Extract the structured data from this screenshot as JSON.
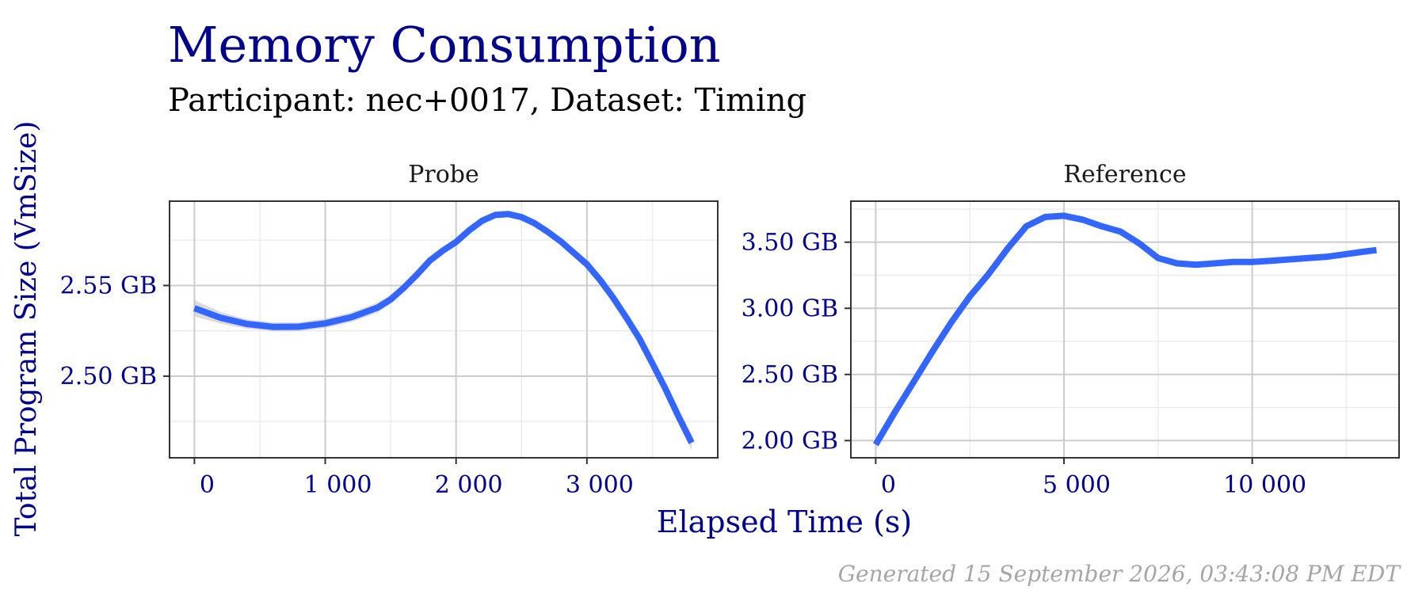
{
  "title": "Memory Consumption",
  "subtitle": "Participant: nec+0017, Dataset: Timing",
  "ylabel": "Total Program Size (VmSize)",
  "xlabel": "Elapsed Time (s)",
  "caption": "Generated 15 September 2026, 03:43:08 PM EDT",
  "colors": {
    "title": "#00008b",
    "axis_text": "#00008b",
    "line": "#3366ff",
    "ribbon": "#bdbdbd",
    "grid_major": "#cccccc",
    "grid_minor": "#ebebeb",
    "panel_border": "#333333",
    "caption": "#a6a6a6"
  },
  "chart_data": [
    {
      "type": "line",
      "panel": "Probe",
      "x_ticks": [
        0,
        1000,
        2000,
        3000
      ],
      "x_tick_labels": [
        "0",
        "1 000",
        "2 000",
        "3 000"
      ],
      "y_ticks": [
        2.5,
        2.55
      ],
      "y_tick_labels": [
        "2.50 GB",
        "2.55 GB"
      ],
      "xlim": [
        -190,
        4000
      ],
      "ylim": [
        2.455,
        2.5965
      ],
      "grid": true,
      "series": [
        {
          "x": [
            0,
            200,
            400,
            600,
            800,
            1000,
            1200,
            1400,
            1500,
            1600,
            1700,
            1800,
            1900,
            2000,
            2100,
            2200,
            2300,
            2400,
            2500,
            2600,
            2700,
            2800,
            2900,
            3000,
            3100,
            3200,
            3300,
            3400,
            3500,
            3600,
            3700,
            3800
          ],
          "y": [
            2.5375,
            2.5322,
            2.5288,
            2.5272,
            2.5273,
            2.5291,
            2.5325,
            2.5378,
            2.5423,
            2.5487,
            2.5559,
            2.5638,
            2.5693,
            2.574,
            2.5804,
            2.5857,
            2.5889,
            2.5894,
            2.5877,
            2.5843,
            2.5796,
            2.5743,
            2.568,
            2.5617,
            2.5531,
            2.5433,
            2.5324,
            2.5209,
            2.5071,
            2.4931,
            2.4778,
            2.4633
          ],
          "lower": [
            2.533,
            2.529,
            2.5262,
            2.5248,
            2.5248,
            2.5265,
            2.5298,
            2.535,
            2.5398,
            2.5465,
            2.5538,
            2.562,
            2.5675,
            2.5722,
            2.5787,
            2.5842,
            2.5875,
            2.588,
            2.5863,
            2.5829,
            2.5782,
            2.5729,
            2.5666,
            2.5602,
            2.5515,
            2.5416,
            2.5305,
            2.5188,
            2.5048,
            2.4905,
            2.4748,
            2.459
          ],
          "upper": [
            2.542,
            2.5354,
            2.5314,
            2.5296,
            2.5298,
            2.5317,
            2.5352,
            2.5406,
            2.5448,
            2.5509,
            2.558,
            2.5656,
            2.5711,
            2.5758,
            2.5821,
            2.5872,
            2.5903,
            2.5908,
            2.5891,
            2.5857,
            2.581,
            2.5757,
            2.5694,
            2.5632,
            2.5547,
            2.545,
            2.5343,
            2.523,
            2.5094,
            2.4957,
            2.4808,
            2.4676
          ]
        }
      ]
    },
    {
      "type": "line",
      "panel": "Reference",
      "x_ticks": [
        0,
        5000,
        10000
      ],
      "x_tick_labels": [
        "0",
        "5 000",
        "10 000"
      ],
      "y_ticks": [
        2.0,
        2.5,
        3.0,
        3.5
      ],
      "y_tick_labels": [
        "2.00 GB",
        "2.50 GB",
        "3.00 GB",
        "3.50 GB"
      ],
      "xlim": [
        -660,
        13900
      ],
      "ylim": [
        1.87,
        3.81
      ],
      "grid": true,
      "series": [
        {
          "x": [
            0,
            500,
            1000,
            1500,
            2000,
            2500,
            3000,
            3500,
            4000,
            4500,
            5000,
            5500,
            6000,
            6500,
            7000,
            7500,
            8000,
            8500,
            9000,
            9500,
            10000,
            10500,
            11000,
            11500,
            12000,
            12500,
            13000,
            13300
          ],
          "y": [
            1.97,
            2.21,
            2.44,
            2.67,
            2.89,
            3.09,
            3.26,
            3.45,
            3.62,
            3.69,
            3.7,
            3.67,
            3.62,
            3.58,
            3.49,
            3.38,
            3.34,
            3.33,
            3.34,
            3.35,
            3.35,
            3.36,
            3.37,
            3.38,
            3.39,
            3.41,
            3.43,
            3.44
          ],
          "lower": [
            1.95,
            2.2,
            2.43,
            2.66,
            2.88,
            3.08,
            3.25,
            3.44,
            3.61,
            3.68,
            3.69,
            3.66,
            3.61,
            3.57,
            3.48,
            3.37,
            3.33,
            3.32,
            3.33,
            3.34,
            3.34,
            3.35,
            3.36,
            3.37,
            3.38,
            3.4,
            3.42,
            3.43
          ],
          "upper": [
            1.99,
            2.22,
            2.45,
            2.68,
            2.9,
            3.1,
            3.27,
            3.46,
            3.63,
            3.7,
            3.71,
            3.68,
            3.63,
            3.59,
            3.5,
            3.39,
            3.35,
            3.34,
            3.35,
            3.36,
            3.36,
            3.37,
            3.38,
            3.39,
            3.4,
            3.42,
            3.44,
            3.45
          ]
        }
      ]
    }
  ]
}
